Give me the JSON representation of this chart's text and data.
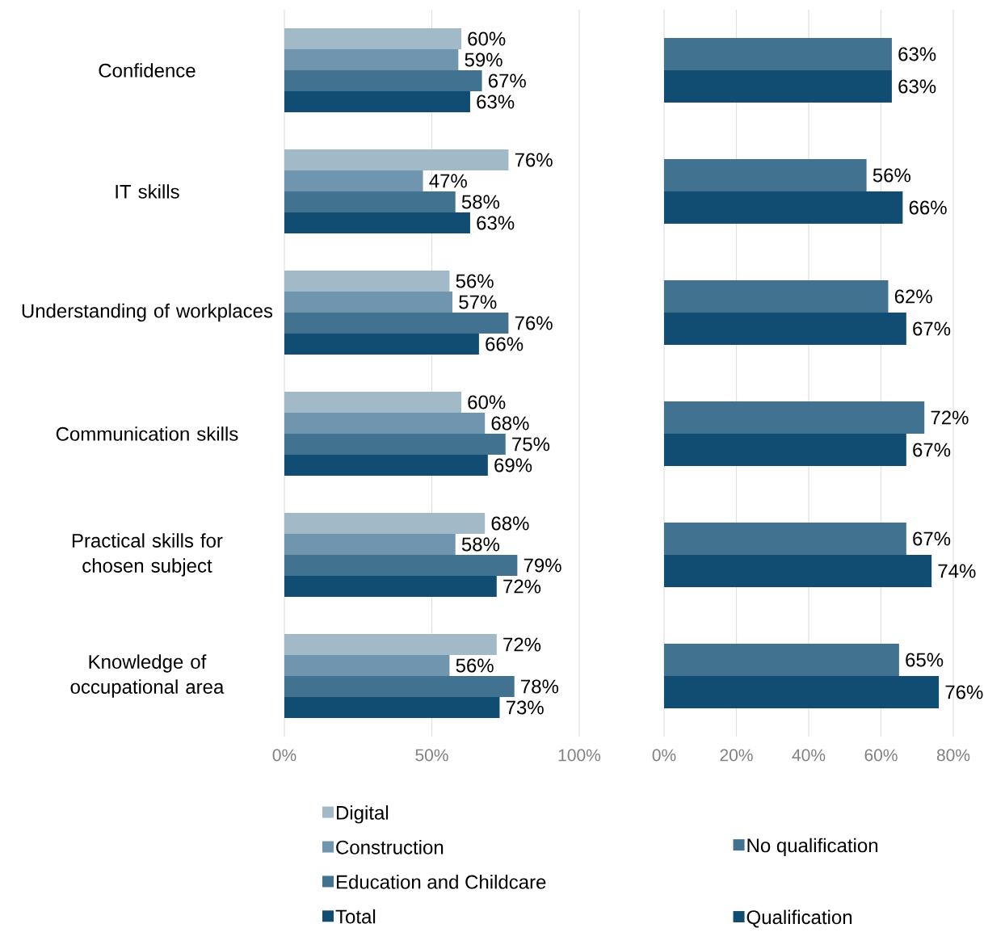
{
  "chart_data": [
    {
      "type": "bar",
      "orientation": "horizontal",
      "categories": [
        "Confidence",
        "IT skills",
        "Understanding of workplaces",
        "Communication skills",
        "Practical skills for chosen subject",
        "Knowledge of occupational area"
      ],
      "series": [
        {
          "name": "Digital",
          "color": "#a2b9c8",
          "values": [
            60,
            76,
            56,
            60,
            68,
            72
          ],
          "value_labels": [
            "60%",
            "76%",
            "56%",
            "60%",
            "68%",
            "72%"
          ]
        },
        {
          "name": "Construction",
          "color": "#7096af",
          "values": [
            59,
            47,
            57,
            68,
            58,
            56
          ],
          "value_labels": [
            "59%",
            "47%",
            "57%",
            "68%",
            "58%",
            "56%"
          ]
        },
        {
          "name": "Education and Childcare",
          "color": "#41728f",
          "values": [
            67,
            58,
            76,
            75,
            79,
            78
          ],
          "value_labels": [
            "67%",
            "58%",
            "76%",
            "75%",
            "79%",
            "78%"
          ]
        },
        {
          "name": "Total",
          "color": "#114d72",
          "values": [
            63,
            63,
            66,
            69,
            72,
            73
          ],
          "value_labels": [
            "63%",
            "63%",
            "66%",
            "69%",
            "72%",
            "73%"
          ]
        }
      ],
      "xlim": [
        0,
        100
      ],
      "xticks": [
        {
          "value": 0,
          "label": "0%"
        },
        {
          "value": 50,
          "label": "50%"
        },
        {
          "value": 100,
          "label": "100%"
        }
      ],
      "grid": "x",
      "legend": "bottom"
    },
    {
      "type": "bar",
      "orientation": "horizontal",
      "categories": [
        null,
        null,
        null,
        null,
        null,
        null
      ],
      "series": [
        {
          "name": "No qualification",
          "color": "#41728f",
          "values": [
            63,
            56,
            62,
            72,
            67,
            65
          ],
          "value_labels": [
            "63%",
            "56%",
            "62%",
            "72%",
            "67%",
            "65%"
          ]
        },
        {
          "name": "Qualification",
          "color": "#114d72",
          "values": [
            63,
            66,
            67,
            67,
            74,
            76
          ],
          "value_labels": [
            "63%",
            "66%",
            "67%",
            "67%",
            "74%",
            "76%"
          ]
        }
      ],
      "xlim": [
        0,
        80
      ],
      "xticks": [
        {
          "value": 0,
          "label": "0%"
        },
        {
          "value": 20,
          "label": "20%"
        },
        {
          "value": 40,
          "label": "40%"
        },
        {
          "value": 60,
          "label": "60%"
        },
        {
          "value": 80,
          "label": "80%"
        }
      ],
      "grid": "x",
      "legend": "bottom",
      "tick_labels": "x"
    }
  ]
}
